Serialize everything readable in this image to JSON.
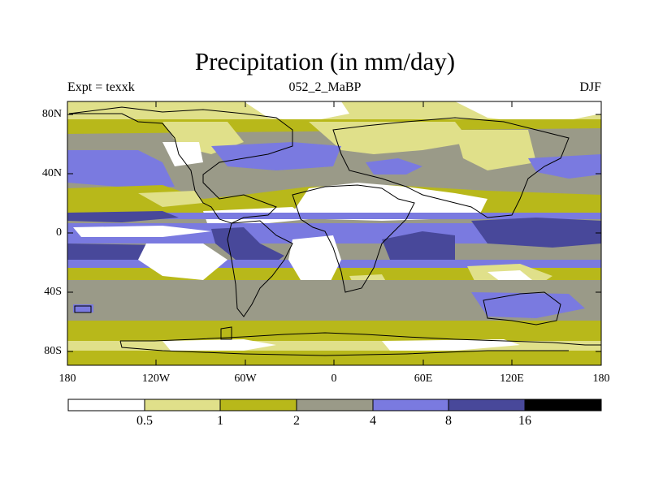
{
  "title": "Precipitation (in mm/day)",
  "subtitle_left": "Expt = texxk",
  "subtitle_center": "052_2_MaBP",
  "subtitle_right": "DJF",
  "lat_labels": [
    "80N",
    "40N",
    "0",
    "40S",
    "80S"
  ],
  "lon_labels": [
    "180",
    "120W",
    "60W",
    "0",
    "60E",
    "120E",
    "180"
  ],
  "colorbar": {
    "boundary_labels": [
      "0.5",
      "1",
      "2",
      "4",
      "8",
      "16"
    ],
    "colors": [
      "#ffffff",
      "#e0e08a",
      "#b8b81a",
      "#9a9a88",
      "#7a7ae0",
      "#48489a",
      "#000000"
    ]
  },
  "colors": {
    "white": "#ffffff",
    "light_yellow": "#e0e08a",
    "olive": "#b8b81a",
    "gray": "#9a9a88",
    "blue": "#7a7ae0",
    "dark_blue": "#48489a",
    "outline": "#000000"
  }
}
